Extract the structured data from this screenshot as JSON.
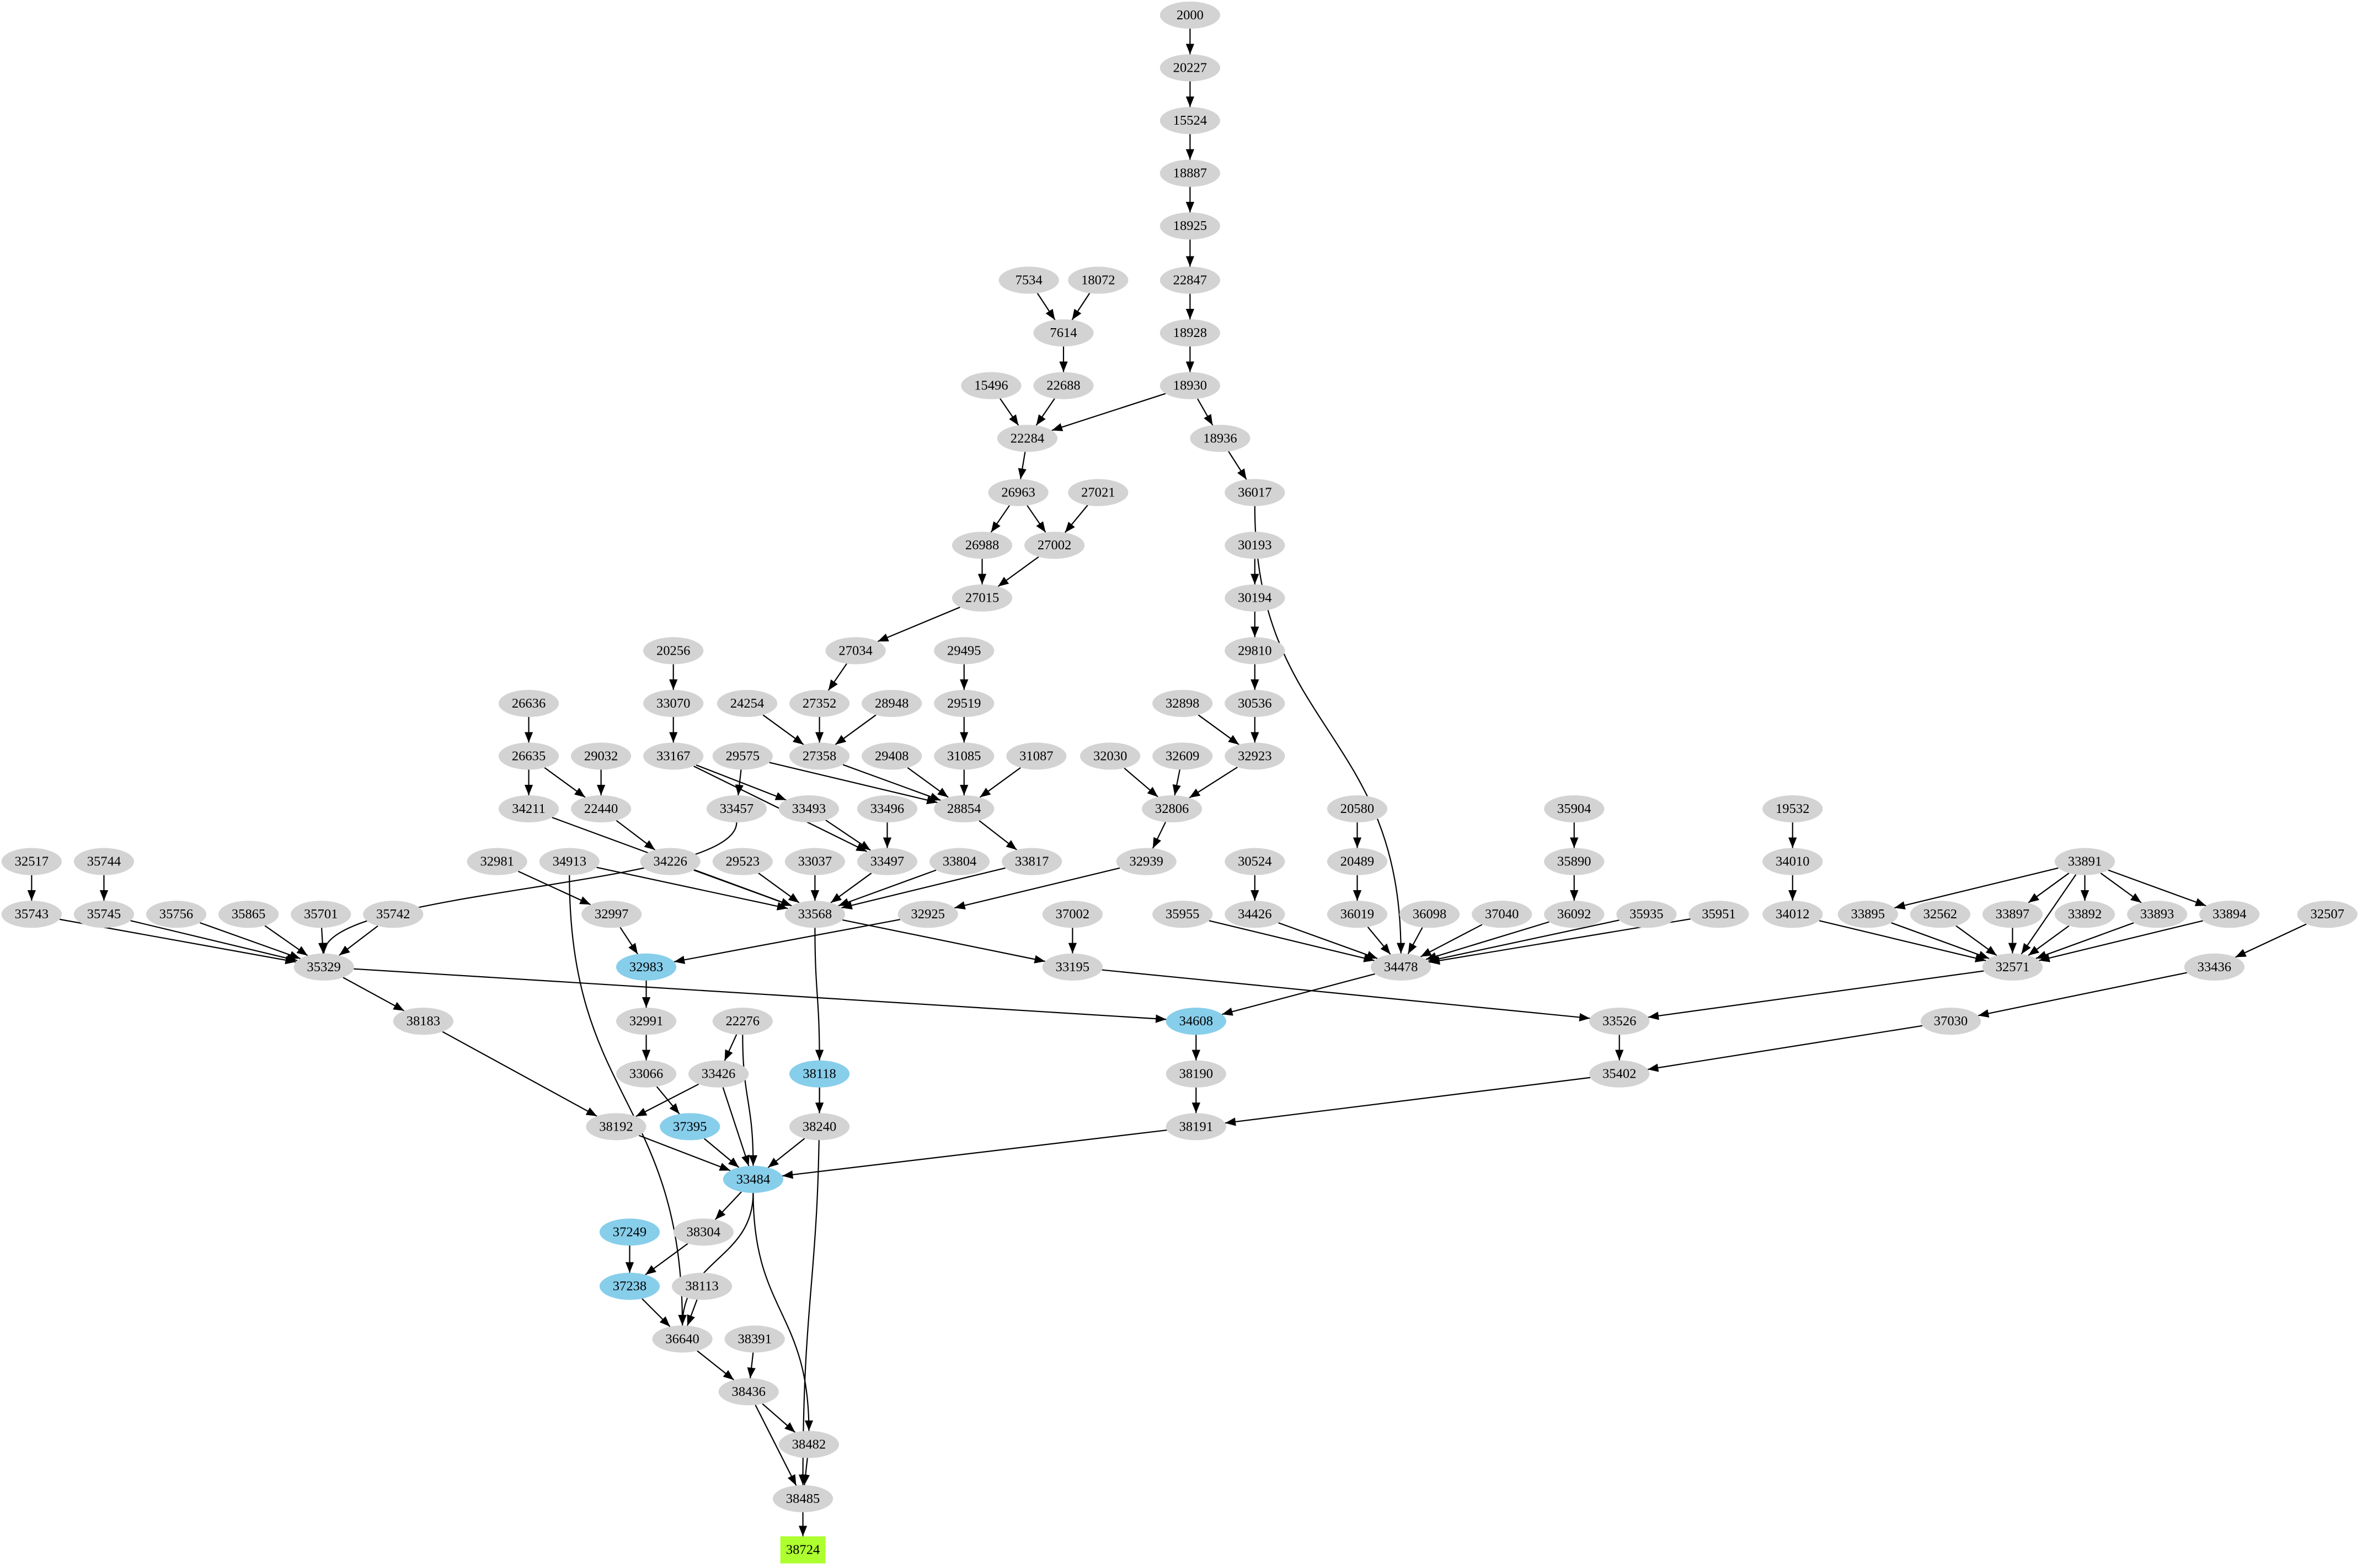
{
  "nodes": [
    {
      "label": "2000",
      "color": "#d3d3d3"
    },
    {
      "label": "20227",
      "color": "#d3d3d3"
    },
    {
      "label": "15524",
      "color": "#d3d3d3"
    },
    {
      "label": "18887",
      "color": "#d3d3d3"
    },
    {
      "label": "18925",
      "color": "#d3d3d3"
    },
    {
      "label": "22847",
      "color": "#d3d3d3"
    },
    {
      "label": "7534",
      "color": "#d3d3d3"
    },
    {
      "label": "18072",
      "color": "#d3d3d3"
    },
    {
      "label": "7614",
      "color": "#d3d3d3"
    },
    {
      "label": "18928",
      "color": "#d3d3d3"
    },
    {
      "label": "22688",
      "color": "#d3d3d3"
    },
    {
      "label": "15496",
      "color": "#d3d3d3"
    },
    {
      "label": "18930",
      "color": "#d3d3d3"
    },
    {
      "label": "22284",
      "color": "#d3d3d3"
    },
    {
      "label": "18936",
      "color": "#d3d3d3"
    },
    {
      "label": "26963",
      "color": "#d3d3d3"
    },
    {
      "label": "27021",
      "color": "#d3d3d3"
    },
    {
      "label": "36017",
      "color": "#d3d3d3"
    },
    {
      "label": "26988",
      "color": "#d3d3d3"
    },
    {
      "label": "27002",
      "color": "#d3d3d3"
    },
    {
      "label": "30193",
      "color": "#d3d3d3"
    },
    {
      "label": "27015",
      "color": "#d3d3d3"
    },
    {
      "label": "30194",
      "color": "#d3d3d3"
    },
    {
      "label": "27034",
      "color": "#d3d3d3"
    },
    {
      "label": "20256",
      "color": "#d3d3d3"
    },
    {
      "label": "29495",
      "color": "#d3d3d3"
    },
    {
      "label": "29810",
      "color": "#d3d3d3"
    },
    {
      "label": "26636",
      "color": "#d3d3d3"
    },
    {
      "label": "33070",
      "color": "#d3d3d3"
    },
    {
      "label": "24254",
      "color": "#d3d3d3"
    },
    {
      "label": "27352",
      "color": "#d3d3d3"
    },
    {
      "label": "28948",
      "color": "#d3d3d3"
    },
    {
      "label": "29519",
      "color": "#d3d3d3"
    },
    {
      "label": "32898",
      "color": "#d3d3d3"
    },
    {
      "label": "30536",
      "color": "#d3d3d3"
    },
    {
      "label": "26635",
      "color": "#d3d3d3"
    },
    {
      "label": "29032",
      "color": "#d3d3d3"
    },
    {
      "label": "33167",
      "color": "#d3d3d3"
    },
    {
      "label": "29575",
      "color": "#d3d3d3"
    },
    {
      "label": "27358",
      "color": "#d3d3d3"
    },
    {
      "label": "29408",
      "color": "#d3d3d3"
    },
    {
      "label": "31085",
      "color": "#d3d3d3"
    },
    {
      "label": "31087",
      "color": "#d3d3d3"
    },
    {
      "label": "32030",
      "color": "#d3d3d3"
    },
    {
      "label": "32609",
      "color": "#d3d3d3"
    },
    {
      "label": "32923",
      "color": "#d3d3d3"
    },
    {
      "label": "34211",
      "color": "#d3d3d3"
    },
    {
      "label": "22440",
      "color": "#d3d3d3"
    },
    {
      "label": "33457",
      "color": "#d3d3d3"
    },
    {
      "label": "33493",
      "color": "#d3d3d3"
    },
    {
      "label": "28854",
      "color": "#d3d3d3"
    },
    {
      "label": "33496",
      "color": "#d3d3d3"
    },
    {
      "label": "32806",
      "color": "#d3d3d3"
    },
    {
      "label": "20580",
      "color": "#d3d3d3"
    },
    {
      "label": "35904",
      "color": "#d3d3d3"
    },
    {
      "label": "19532",
      "color": "#d3d3d3"
    },
    {
      "label": "32517",
      "color": "#d3d3d3"
    },
    {
      "label": "35744",
      "color": "#d3d3d3"
    },
    {
      "label": "32981",
      "color": "#d3d3d3"
    },
    {
      "label": "34913",
      "color": "#d3d3d3"
    },
    {
      "label": "34226",
      "color": "#d3d3d3"
    },
    {
      "label": "29523",
      "color": "#d3d3d3"
    },
    {
      "label": "33037",
      "color": "#d3d3d3"
    },
    {
      "label": "33497",
      "color": "#d3d3d3"
    },
    {
      "label": "33804",
      "color": "#d3d3d3"
    },
    {
      "label": "33817",
      "color": "#d3d3d3"
    },
    {
      "label": "32939",
      "color": "#d3d3d3"
    },
    {
      "label": "30524",
      "color": "#d3d3d3"
    },
    {
      "label": "20489",
      "color": "#d3d3d3"
    },
    {
      "label": "35890",
      "color": "#d3d3d3"
    },
    {
      "label": "34010",
      "color": "#d3d3d3"
    },
    {
      "label": "33891",
      "color": "#d3d3d3"
    },
    {
      "label": "35743",
      "color": "#d3d3d3"
    },
    {
      "label": "35745",
      "color": "#d3d3d3"
    },
    {
      "label": "35756",
      "color": "#d3d3d3"
    },
    {
      "label": "35865",
      "color": "#d3d3d3"
    },
    {
      "label": "35701",
      "color": "#d3d3d3"
    },
    {
      "label": "35742",
      "color": "#d3d3d3"
    },
    {
      "label": "32997",
      "color": "#d3d3d3"
    },
    {
      "label": "33568",
      "color": "#d3d3d3"
    },
    {
      "label": "32925",
      "color": "#d3d3d3"
    },
    {
      "label": "37002",
      "color": "#d3d3d3"
    },
    {
      "label": "35955",
      "color": "#d3d3d3"
    },
    {
      "label": "34426",
      "color": "#d3d3d3"
    },
    {
      "label": "36019",
      "color": "#d3d3d3"
    },
    {
      "label": "36098",
      "color": "#d3d3d3"
    },
    {
      "label": "37040",
      "color": "#d3d3d3"
    },
    {
      "label": "36092",
      "color": "#d3d3d3"
    },
    {
      "label": "35935",
      "color": "#d3d3d3"
    },
    {
      "label": "35951",
      "color": "#d3d3d3"
    },
    {
      "label": "34012",
      "color": "#d3d3d3"
    },
    {
      "label": "33895",
      "color": "#d3d3d3"
    },
    {
      "label": "32562",
      "color": "#d3d3d3"
    },
    {
      "label": "33897",
      "color": "#d3d3d3"
    },
    {
      "label": "33892",
      "color": "#d3d3d3"
    },
    {
      "label": "33893",
      "color": "#d3d3d3"
    },
    {
      "label": "33894",
      "color": "#d3d3d3"
    },
    {
      "label": "32507",
      "color": "#d3d3d3"
    },
    {
      "label": "35329",
      "color": "#d3d3d3"
    },
    {
      "label": "32983",
      "color": "#87ceeb"
    },
    {
      "label": "33195",
      "color": "#d3d3d3"
    },
    {
      "label": "34478",
      "color": "#d3d3d3"
    },
    {
      "label": "32571",
      "color": "#d3d3d3"
    },
    {
      "label": "33436",
      "color": "#d3d3d3"
    },
    {
      "label": "38183",
      "color": "#d3d3d3"
    },
    {
      "label": "32991",
      "color": "#d3d3d3"
    },
    {
      "label": "22276",
      "color": "#d3d3d3"
    },
    {
      "label": "34608",
      "color": "#87ceeb"
    },
    {
      "label": "33526",
      "color": "#d3d3d3"
    },
    {
      "label": "37030",
      "color": "#d3d3d3"
    },
    {
      "label": "33066",
      "color": "#d3d3d3"
    },
    {
      "label": "33426",
      "color": "#d3d3d3"
    },
    {
      "label": "38118",
      "color": "#87ceeb"
    },
    {
      "label": "38190",
      "color": "#d3d3d3"
    },
    {
      "label": "35402",
      "color": "#d3d3d3"
    },
    {
      "label": "38192",
      "color": "#d3d3d3"
    },
    {
      "label": "37395",
      "color": "#87ceeb"
    },
    {
      "label": "38240",
      "color": "#d3d3d3"
    },
    {
      "label": "38191",
      "color": "#d3d3d3"
    },
    {
      "label": "33484",
      "color": "#87ceeb"
    },
    {
      "label": "37249",
      "color": "#87ceeb"
    },
    {
      "label": "38304",
      "color": "#d3d3d3"
    },
    {
      "label": "37238",
      "color": "#87ceeb"
    },
    {
      "label": "38113",
      "color": "#d3d3d3"
    },
    {
      "label": "36640",
      "color": "#d3d3d3"
    },
    {
      "label": "38391",
      "color": "#d3d3d3"
    },
    {
      "label": "38436",
      "color": "#d3d3d3"
    },
    {
      "label": "38482",
      "color": "#d3d3d3"
    },
    {
      "label": "38485",
      "color": "#d3d3d3"
    },
    {
      "label": "38724",
      "color": "#adff2f",
      "shape": "box"
    }
  ],
  "edges": [
    [
      "2000",
      "20227"
    ],
    [
      "20227",
      "15524"
    ],
    [
      "15524",
      "18887"
    ],
    [
      "18887",
      "18925"
    ],
    [
      "18925",
      "22847"
    ],
    [
      "22847",
      "18928"
    ],
    [
      "18928",
      "18930"
    ],
    [
      "7534",
      "7614"
    ],
    [
      "18072",
      "7614"
    ],
    [
      "7614",
      "22688"
    ],
    [
      "22688",
      "22284"
    ],
    [
      "15496",
      "22284"
    ],
    [
      "18930",
      "22284"
    ],
    [
      "18930",
      "18936"
    ],
    [
      "18936",
      "36017"
    ],
    [
      "22284",
      "26963"
    ],
    [
      "26963",
      "26988"
    ],
    [
      "26963",
      "27002"
    ],
    [
      "27021",
      "27002"
    ],
    [
      "26988",
      "27015"
    ],
    [
      "27002",
      "27015"
    ],
    [
      "27015",
      "27034"
    ],
    [
      "27034",
      "27352"
    ],
    [
      "27352",
      "27358"
    ],
    [
      "24254",
      "27358"
    ],
    [
      "28948",
      "27358"
    ],
    [
      "27358",
      "28854"
    ],
    [
      "29575",
      "28854"
    ],
    [
      "29575",
      "33457"
    ],
    [
      "29408",
      "28854"
    ],
    [
      "31085",
      "28854"
    ],
    [
      "31087",
      "28854"
    ],
    [
      "29495",
      "29519"
    ],
    [
      "29519",
      "31085"
    ],
    [
      "28854",
      "33817"
    ],
    [
      "33817",
      "33568"
    ],
    [
      "20256",
      "33070"
    ],
    [
      "33070",
      "33167"
    ],
    [
      "33167",
      "33493"
    ],
    [
      "33167",
      "33497"
    ],
    [
      "33493",
      "33497"
    ],
    [
      "33496",
      "33497"
    ],
    [
      "33497",
      "33568"
    ],
    [
      "26636",
      "26635"
    ],
    [
      "26635",
      "34211"
    ],
    [
      "26635",
      "22440"
    ],
    [
      "29032",
      "22440"
    ],
    [
      "22440",
      "34226"
    ],
    [
      "34226",
      "33568"
    ],
    [
      "34211",
      "33568"
    ],
    [
      "29523",
      "33568"
    ],
    [
      "33037",
      "33568"
    ],
    [
      "33804",
      "33568"
    ],
    [
      "34913",
      "33568"
    ],
    [
      "34913",
      "36640"
    ],
    [
      "32939",
      "32925"
    ],
    [
      "32925",
      "32983"
    ],
    [
      "32981",
      "32997"
    ],
    [
      "32997",
      "32983"
    ],
    [
      "33457",
      "35329"
    ],
    [
      "33568",
      "33195"
    ],
    [
      "33568",
      "38118"
    ],
    [
      "37002",
      "33195"
    ],
    [
      "33195",
      "33526"
    ],
    [
      "30193",
      "30194"
    ],
    [
      "30194",
      "29810"
    ],
    [
      "29810",
      "30536"
    ],
    [
      "30536",
      "32923"
    ],
    [
      "32898",
      "32923"
    ],
    [
      "32923",
      "32806"
    ],
    [
      "32030",
      "32806"
    ],
    [
      "32609",
      "32806"
    ],
    [
      "32806",
      "32939"
    ],
    [
      "36017",
      "34478"
    ],
    [
      "35955",
      "34478"
    ],
    [
      "34426",
      "34478"
    ],
    [
      "30524",
      "34426"
    ],
    [
      "20580",
      "20489"
    ],
    [
      "20489",
      "36019"
    ],
    [
      "36019",
      "34478"
    ],
    [
      "36098",
      "34478"
    ],
    [
      "37040",
      "34478"
    ],
    [
      "36092",
      "34478"
    ],
    [
      "35904",
      "35890"
    ],
    [
      "35890",
      "36092"
    ],
    [
      "35935",
      "34478"
    ],
    [
      "35951",
      "34478"
    ],
    [
      "34478",
      "34608"
    ],
    [
      "19532",
      "34010"
    ],
    [
      "34010",
      "34012"
    ],
    [
      "34012",
      "32571"
    ],
    [
      "33891",
      "33895"
    ],
    [
      "33891",
      "33897"
    ],
    [
      "33891",
      "32571"
    ],
    [
      "33891",
      "33892"
    ],
    [
      "33891",
      "33893"
    ],
    [
      "33891",
      "33894"
    ],
    [
      "33895",
      "32571"
    ],
    [
      "32562",
      "32571"
    ],
    [
      "33897",
      "32571"
    ],
    [
      "33892",
      "32571"
    ],
    [
      "33893",
      "32571"
    ],
    [
      "33894",
      "32571"
    ],
    [
      "32571",
      "33526"
    ],
    [
      "32507",
      "33436"
    ],
    [
      "33436",
      "37030"
    ],
    [
      "37030",
      "35402"
    ],
    [
      "33526",
      "35402"
    ],
    [
      "35402",
      "38191"
    ],
    [
      "32517",
      "35743"
    ],
    [
      "35743",
      "35329"
    ],
    [
      "35744",
      "35745"
    ],
    [
      "35745",
      "35329"
    ],
    [
      "35756",
      "35329"
    ],
    [
      "35865",
      "35329"
    ],
    [
      "35701",
      "35329"
    ],
    [
      "35742",
      "35329"
    ],
    [
      "35329",
      "38183"
    ],
    [
      "35329",
      "34608"
    ],
    [
      "38183",
      "38192"
    ],
    [
      "34608",
      "38190"
    ],
    [
      "38190",
      "38191"
    ],
    [
      "38191",
      "33484"
    ],
    [
      "32983",
      "32991"
    ],
    [
      "32991",
      "33066"
    ],
    [
      "33066",
      "37395"
    ],
    [
      "22276",
      "33426"
    ],
    [
      "22276",
      "33484"
    ],
    [
      "33426",
      "38192"
    ],
    [
      "33426",
      "33484"
    ],
    [
      "38192",
      "33484"
    ],
    [
      "37395",
      "33484"
    ],
    [
      "38118",
      "38240"
    ],
    [
      "38118",
      "38485"
    ],
    [
      "38240",
      "33484"
    ],
    [
      "33484",
      "38304"
    ],
    [
      "33484",
      "36640"
    ],
    [
      "33484",
      "38482"
    ],
    [
      "38304",
      "37238"
    ],
    [
      "37249",
      "37238"
    ],
    [
      "37238",
      "36640"
    ],
    [
      "38113",
      "36640"
    ],
    [
      "36640",
      "38436"
    ],
    [
      "38391",
      "38436"
    ],
    [
      "38436",
      "38482"
    ],
    [
      "38436",
      "38485"
    ],
    [
      "38482",
      "38485"
    ],
    [
      "38485",
      "38724"
    ]
  ]
}
